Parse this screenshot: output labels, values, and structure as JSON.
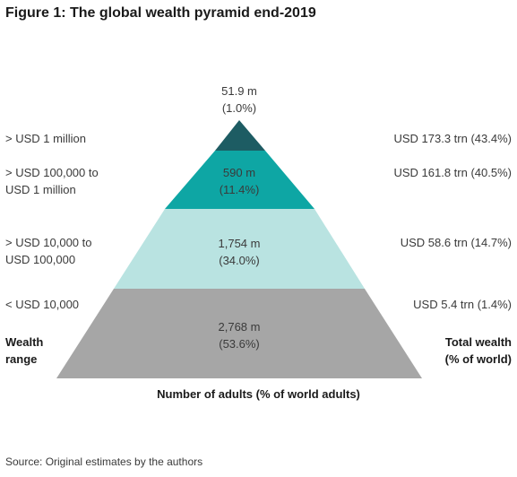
{
  "title": "Figure 1: The global wealth pyramid end-2019",
  "colors": {
    "tier_top": "#1d5c63",
    "tier_upper": "#0ea6a4",
    "tier_middle": "#b9e3e1",
    "tier_base": "#a6a6a6"
  },
  "chart_data": {
    "type": "pyramid",
    "tiers": [
      {
        "wealth_range": "> USD 1 million",
        "adults": "51.9 m",
        "adults_share": "(1.0%)",
        "total_wealth": "USD 173.3 trn (43.4%)"
      },
      {
        "wealth_range": "> USD 100,000 to USD 1 million",
        "adults": "590 m",
        "adults_share": "(11.4%)",
        "total_wealth": "USD 161.8 trn (40.5%)"
      },
      {
        "wealth_range": "> USD 10,000 to USD 100,000",
        "adults": "1,754 m",
        "adults_share": "(34.0%)",
        "total_wealth": "USD 58.6 trn (14.7%)"
      },
      {
        "wealth_range": "< USD 10,000",
        "adults": "2,768 m",
        "adults_share": "(53.6%)",
        "total_wealth": "USD 5.4 trn (1.4%)"
      }
    ],
    "left_axis_label": "Wealth range",
    "right_axis_label": "Total wealth (% of world)",
    "bottom_label": "Number of adults (% of world adults)"
  },
  "labels": {
    "left": {
      "t0": "> USD 1 million",
      "t1_line1": "> USD 100,000 to",
      "t1_line2": "USD 1 million",
      "t2_line1": "> USD 10,000 to",
      "t2_line2": "USD 100,000",
      "t3": "< USD 10,000",
      "axis_line1": "Wealth",
      "axis_line2": "range"
    },
    "right": {
      "axis_line1": "Total wealth",
      "axis_line2": "(% of world)"
    }
  },
  "source": "Source: Original estimates by the authors"
}
